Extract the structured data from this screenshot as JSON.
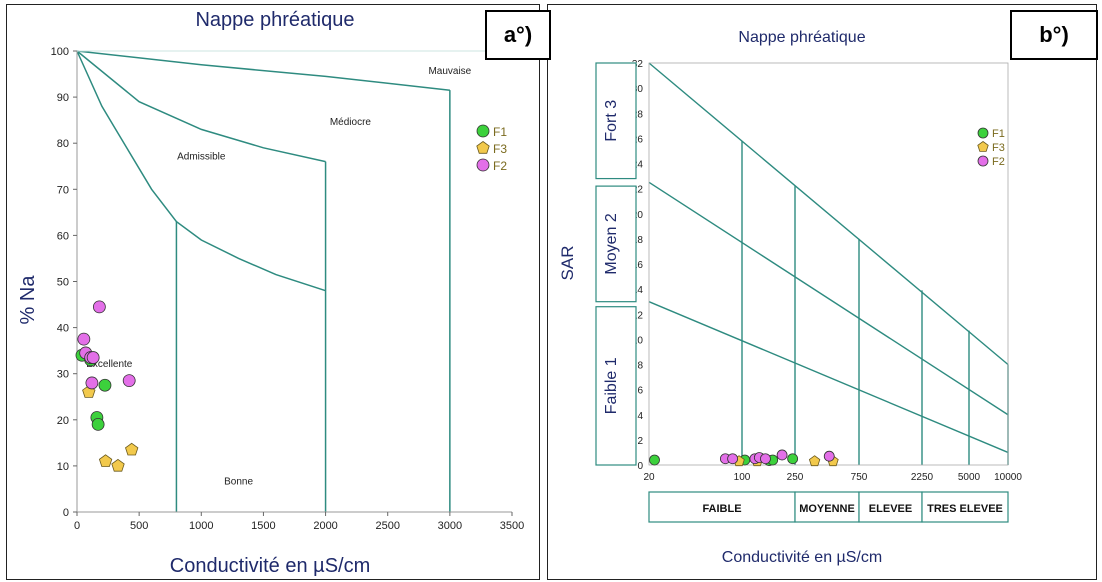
{
  "chart_data": [
    {
      "panel_label": "a°)",
      "type": "scatter",
      "title": "Nappe phréatique",
      "xlabel": "Conductivité en µS/cm",
      "ylabel": "% Na",
      "xlim": [
        0,
        3500
      ],
      "ylim": [
        0,
        100
      ],
      "xticks": [
        0,
        500,
        1000,
        1500,
        2000,
        2500,
        3000,
        3500
      ],
      "yticks": [
        0,
        10,
        20,
        30,
        40,
        50,
        60,
        70,
        80,
        90,
        100
      ],
      "zone_labels": [
        {
          "text": "Excellente",
          "x": 260,
          "y": 31.5
        },
        {
          "text": "Bonne",
          "x": 1300,
          "y": 6
        },
        {
          "text": "Admissible",
          "x": 1000,
          "y": 76.5
        },
        {
          "text": "Médiocre",
          "x": 2200,
          "y": 84
        },
        {
          "text": "Mauvaise",
          "x": 3000,
          "y": 95
        }
      ],
      "legend": [
        {
          "name": "F1",
          "color": "#3cd13c",
          "shape": "circle"
        },
        {
          "name": "F3",
          "color": "#f2c94c",
          "shape": "pentagon"
        },
        {
          "name": "F2",
          "color": "#e36fe8",
          "shape": "circle"
        }
      ],
      "series": [
        {
          "name": "F1",
          "color": "#3cd13c",
          "shape": "circle",
          "points": [
            [
              40,
              34
            ],
            [
              110,
              33
            ],
            [
              160,
              20.5
            ],
            [
              170,
              19
            ],
            [
              225,
              27.5
            ]
          ]
        },
        {
          "name": "F3",
          "color": "#f2c94c",
          "shape": "pentagon",
          "points": [
            [
              95,
              26
            ],
            [
              230,
              11
            ],
            [
              330,
              10
            ],
            [
              440,
              13.5
            ]
          ]
        },
        {
          "name": "F2",
          "color": "#e36fe8",
          "shape": "circle",
          "points": [
            [
              55,
              37.5
            ],
            [
              70,
              34.5
            ],
            [
              110,
              33.5
            ],
            [
              130,
              33.5
            ],
            [
              120,
              28
            ],
            [
              180,
              44.5
            ],
            [
              420,
              28.5
            ]
          ]
        }
      ]
    },
    {
      "panel_label": "b°)",
      "type": "scatter",
      "title": "Nappe phréatique",
      "xlabel": "Conductivité en µS/cm",
      "ylabel": "SAR",
      "xscale": "log",
      "xlim": [
        20,
        10000
      ],
      "ylim": [
        0,
        32
      ],
      "xticks": [
        20,
        100,
        250,
        750,
        2250,
        5000,
        10000
      ],
      "yticks": [
        0,
        2,
        4,
        6,
        8,
        10,
        12,
        14,
        16,
        18,
        20,
        22,
        24,
        26,
        28,
        30,
        32
      ],
      "sar_classes": [
        "Faible 1",
        "Moyen 2",
        "Fort 3"
      ],
      "salinity_classes": [
        "FAIBLE",
        "MOYENNE",
        "ELEVEE",
        "TRES ELEVEE"
      ],
      "legend": [
        {
          "name": "F1",
          "color": "#3cd13c",
          "shape": "circle"
        },
        {
          "name": "F3",
          "color": "#f2c94c",
          "shape": "pentagon"
        },
        {
          "name": "F2",
          "color": "#e36fe8",
          "shape": "circle"
        }
      ],
      "series": [
        {
          "name": "F1",
          "color": "#3cd13c",
          "shape": "circle",
          "points": [
            [
              22,
              0.4
            ],
            [
              105,
              0.4
            ],
            [
              160,
              0.35
            ],
            [
              170,
              0.4
            ],
            [
              240,
              0.5
            ]
          ]
        },
        {
          "name": "F3",
          "color": "#f2c94c",
          "shape": "pentagon",
          "points": [
            [
              95,
              0.3
            ],
            [
              130,
              0.3
            ],
            [
              350,
              0.3
            ],
            [
              480,
              0.3
            ]
          ]
        },
        {
          "name": "F2",
          "color": "#e36fe8",
          "shape": "circle",
          "points": [
            [
              75,
              0.5
            ],
            [
              85,
              0.5
            ],
            [
              125,
              0.5
            ],
            [
              135,
              0.6
            ],
            [
              150,
              0.5
            ],
            [
              200,
              0.8
            ],
            [
              450,
              0.7
            ]
          ]
        }
      ]
    }
  ]
}
